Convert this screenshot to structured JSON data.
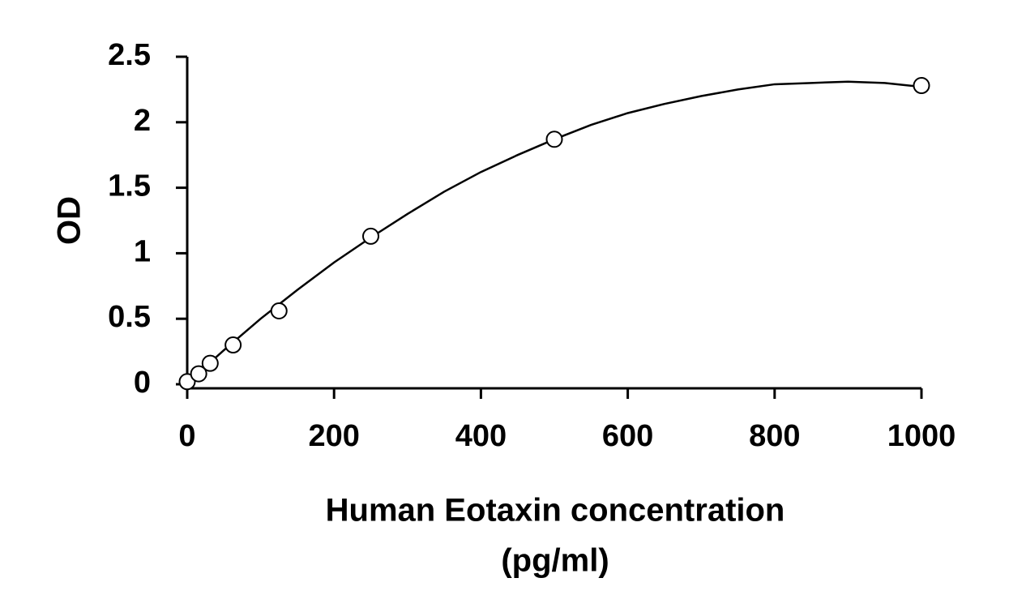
{
  "chart_data": {
    "type": "scatter",
    "x_label": [
      "Human Eotaxin concentration",
      "(pg/ml)"
    ],
    "y_label": "OD",
    "x": [
      0,
      15.6,
      31.25,
      62.5,
      125,
      250,
      500,
      1000
    ],
    "values": [
      0.02,
      0.08,
      0.16,
      0.3,
      0.56,
      1.13,
      1.87,
      2.28
    ],
    "fit_curve": {
      "x": [
        0,
        50,
        100,
        150,
        200,
        250,
        300,
        350,
        400,
        450,
        500,
        550,
        600,
        650,
        700,
        750,
        800,
        850,
        900,
        950,
        1000
      ],
      "y": [
        0.01,
        0.26,
        0.5,
        0.72,
        0.93,
        1.12,
        1.3,
        1.47,
        1.62,
        1.75,
        1.87,
        1.98,
        2.07,
        2.14,
        2.2,
        2.25,
        2.29,
        2.3,
        2.31,
        2.3,
        2.27
      ]
    },
    "color": "#000000",
    "xlim": [
      0,
      1000
    ],
    "xticks": [
      0,
      200,
      400,
      600,
      800,
      1000
    ],
    "ylim": [
      0,
      2.5
    ],
    "yticks": [
      0,
      0.5,
      1,
      1.5,
      2,
      2.5
    ],
    "grid": false
  }
}
